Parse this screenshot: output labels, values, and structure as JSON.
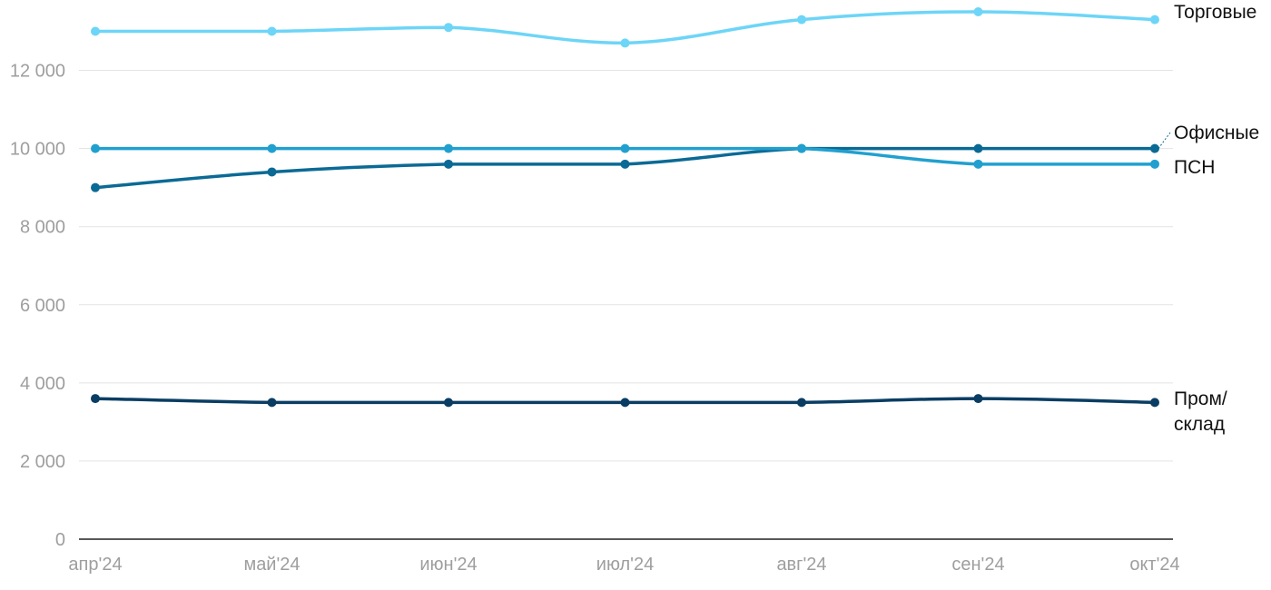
{
  "chart_data": {
    "type": "line",
    "title": "",
    "xlabel": "",
    "ylabel": "",
    "categories": [
      "апр'24",
      "май'24",
      "июн'24",
      "июл'24",
      "авг'24",
      "сен'24",
      "окт'24"
    ],
    "ylim": [
      0,
      13500
    ],
    "yticks": [
      0,
      2000,
      4000,
      6000,
      8000,
      10000,
      12000
    ],
    "ytick_labels": [
      "0",
      "2 000",
      "4 000",
      "6 000",
      "8 000",
      "10 000",
      "12 000"
    ],
    "grid": true,
    "legend": "direct labels at line ends",
    "series": [
      {
        "name": "Торговые",
        "label_lines": [
          "Торговые"
        ],
        "color": "#6dd5f7",
        "values": [
          13000,
          13000,
          13100,
          12700,
          13300,
          13500,
          13300
        ]
      },
      {
        "name": "Офисные",
        "label_lines": [
          "Офисные"
        ],
        "color": "#0b6a95",
        "values": [
          9000,
          9400,
          9600,
          9600,
          10000,
          10000,
          10000
        ]
      },
      {
        "name": "ПСН",
        "label_lines": [
          "ПСН"
        ],
        "color": "#21a0cf",
        "values": [
          10000,
          10000,
          10000,
          10000,
          10000,
          9600,
          9600
        ]
      },
      {
        "name": "Пром/склад",
        "label_lines": [
          "Пром/",
          "склад"
        ],
        "color": "#0a3d63",
        "values": [
          3600,
          3500,
          3500,
          3500,
          3500,
          3600,
          3500
        ]
      }
    ]
  }
}
